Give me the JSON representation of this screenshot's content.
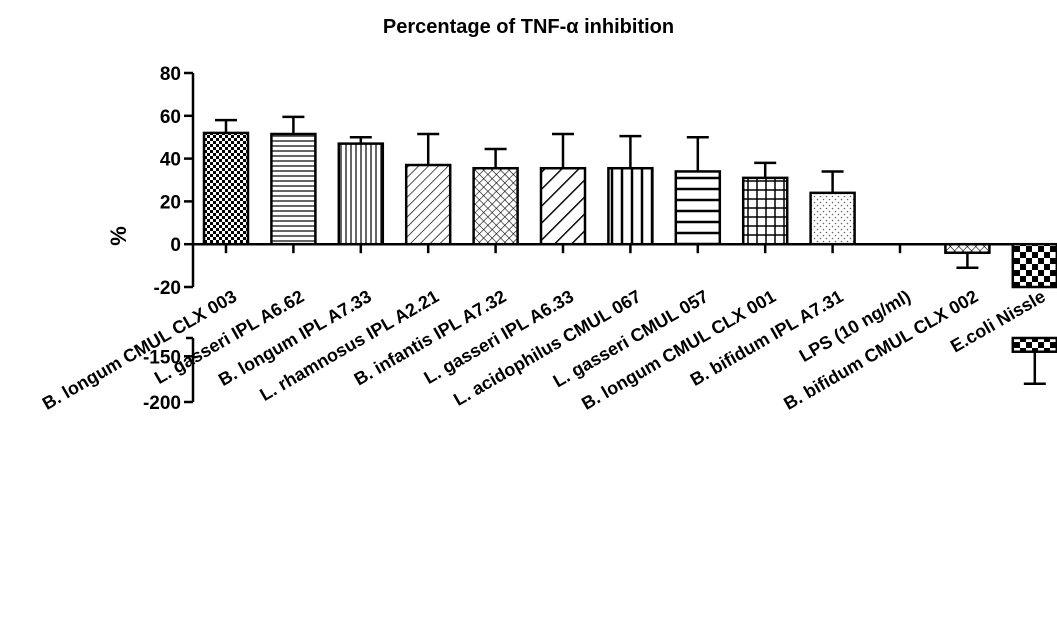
{
  "chart_data": {
    "type": "bar",
    "title": "Percentage of TNF-α inhibition",
    "xlabel": "",
    "ylabel": "%",
    "y_axis_segments": [
      {
        "range": [
          -20,
          80
        ],
        "ticks": [
          -20,
          0,
          20,
          40,
          60,
          80
        ],
        "tick_labels": [
          "-20",
          "0",
          "20",
          "40",
          "60",
          "80"
        ]
      },
      {
        "range": [
          -200,
          -130
        ],
        "ticks": [
          -150,
          -200
        ],
        "tick_labels": [
          "-150",
          "-200"
        ],
        "broken_axis": true
      }
    ],
    "categories": [
      "B. longum CMUL CLX 003",
      "L. gasseri IPL A6.62",
      "B. longum IPL A7.33",
      "L. rhamnosus IPL A2.21",
      "B. infantis IPL A7.32",
      "L. gasseri IPL A6.33",
      "L. acidophilus CMUL 067",
      "L. gasseri CMUL 057",
      "B. longum CMUL CLX 001",
      "B. bifidum IPL A7.31",
      "LPS (10 ng/ml)",
      "B. bifidum CMUL CLX 002",
      "E.coli Nissle"
    ],
    "values": [
      52,
      51.5,
      47,
      37,
      35.5,
      35.5,
      35.5,
      34,
      31,
      24,
      0,
      -4,
      -145
    ],
    "errors": [
      6,
      8,
      3,
      14.5,
      9,
      16,
      15,
      16,
      7,
      10,
      0,
      7,
      35
    ],
    "patterns": [
      "checker",
      "hlines",
      "vlines",
      "diag",
      "crosshatch",
      "diag-wide",
      "vlines-wide",
      "hlines-wide",
      "grid",
      "dots",
      "none",
      "crosshatch",
      "checker-big"
    ],
    "grid": false,
    "legend": "none",
    "bar_color": "#000000",
    "background_color": "#ffffff"
  }
}
